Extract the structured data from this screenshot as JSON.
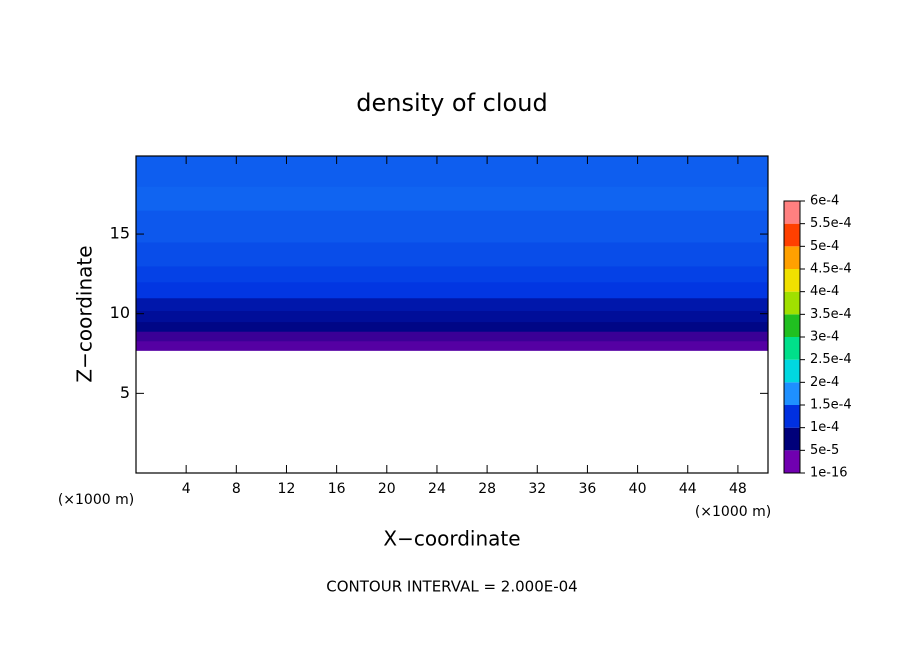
{
  "chart_data": {
    "type": "contour",
    "title": "density of cloud",
    "xlabel": "X−coordinate",
    "ylabel": "Z−coordinate",
    "x_unit_label": "(×1000 m)",
    "y_unit_label": "(×1000 m)",
    "annotation": "CONTOUR INTERVAL = 2.000E-04",
    "xlim": [
      0,
      50.4
    ],
    "ylim": [
      0,
      19.9
    ],
    "xticks": [
      4,
      8,
      12,
      16,
      20,
      24,
      28,
      32,
      36,
      40,
      44,
      48
    ],
    "yticks": [
      5,
      10,
      15
    ],
    "z_edges": [
      7.7,
      8.3,
      8.9,
      9.5,
      10.2,
      11,
      12,
      13,
      14.5,
      16.5,
      18,
      19.9
    ],
    "values": [
      2e-05,
      4e-05,
      6e-05,
      7.5e-05,
      9e-05,
      0.000105,
      0.000115,
      0.000125,
      0.000135,
      0.000145,
      0.00014
    ],
    "colorbar_ticks": [
      {
        "value": 1e-16,
        "label": "1e-16"
      },
      {
        "value": 5e-05,
        "label": "5e-5"
      },
      {
        "value": 0.0001,
        "label": "1e-4"
      },
      {
        "value": 0.00015,
        "label": "1.5e-4"
      },
      {
        "value": 0.0002,
        "label": "2e-4"
      },
      {
        "value": 0.00025,
        "label": "2.5e-4"
      },
      {
        "value": 0.0003,
        "label": "3e-4"
      },
      {
        "value": 0.00035,
        "label": "3.5e-4"
      },
      {
        "value": 0.0004,
        "label": "4e-4"
      },
      {
        "value": 0.00045,
        "label": "4.5e-4"
      },
      {
        "value": 0.0005,
        "label": "5e-4"
      },
      {
        "value": 0.00055,
        "label": "5.5e-4"
      },
      {
        "value": 0.0006,
        "label": "6e-4"
      }
    ],
    "colors": [
      "#7000b0",
      "#00007a",
      "#0030e0",
      "#1e90ff",
      "#00d8e0",
      "#00e08a",
      "#20c020",
      "#a0e000",
      "#f0e000",
      "#ffa000",
      "#ff4000",
      "#ff8080"
    ]
  }
}
